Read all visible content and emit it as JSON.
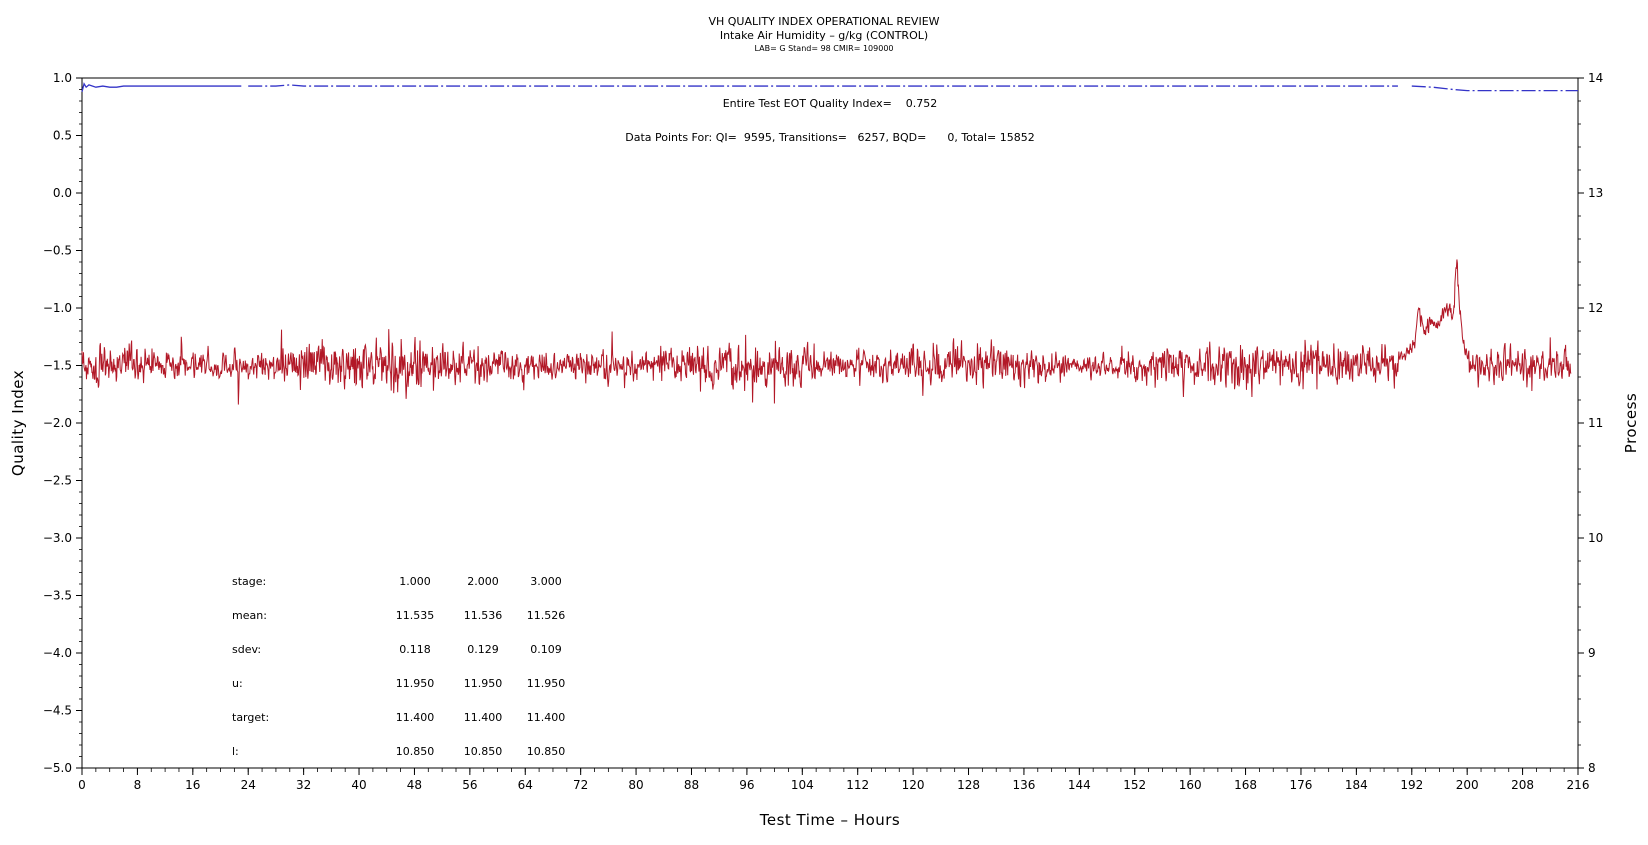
{
  "chart_data": {
    "type": "line",
    "title": "VH QUALITY INDEX OPERATIONAL REVIEW",
    "subtitle": "Intake Air Humidity – g/kg (CONTROL)",
    "subtitle2": "LAB= G Stand= 98 CMIR= 109000",
    "xlabel": "Test Time – Hours",
    "ylabel": "Quality Index",
    "y2label": "Process",
    "xlim": [
      0,
      216
    ],
    "ylim": [
      -5.0,
      1.0
    ],
    "y2lim": [
      8,
      14
    ],
    "x_ticks": [
      "0",
      "8",
      "16",
      "24",
      "32",
      "40",
      "48",
      "56",
      "64",
      "72",
      "80",
      "88",
      "96",
      "104",
      "112",
      "120",
      "128",
      "136",
      "144",
      "152",
      "160",
      "168",
      "176",
      "184",
      "192",
      "200",
      "208",
      "216"
    ],
    "y_ticks": [
      "1.0",
      "0.5",
      "0.0",
      "−0.5",
      "−1.0",
      "−1.5",
      "−2.0",
      "−2.5",
      "−3.0",
      "−3.5",
      "−4.0",
      "−4.5",
      "−5.0"
    ],
    "y2_ticks": [
      "14",
      "13",
      "12",
      "11",
      "10",
      "9",
      "8"
    ],
    "annotations": {
      "eot_quality_index": "Entire Test EOT Quality Index=    0.752",
      "data_points": "Data Points For: QI=  9595, Transitions=   6257, BQD=      0, Total= 15852"
    },
    "stats_table": {
      "rows": [
        {
          "label": "stage:",
          "values": [
            "1.000",
            "2.000",
            "3.000"
          ]
        },
        {
          "label": "mean:",
          "values": [
            "11.535",
            "11.536",
            "11.526"
          ]
        },
        {
          "label": "sdev:",
          "values": [
            "0.118",
            "0.129",
            "0.109"
          ]
        },
        {
          "label": "u:",
          "values": [
            "11.950",
            "11.950",
            "11.950"
          ]
        },
        {
          "label": "target:",
          "values": [
            "11.400",
            "11.400",
            "11.400"
          ]
        },
        {
          "label": "l:",
          "values": [
            "10.850",
            "10.850",
            "10.850"
          ]
        }
      ]
    },
    "series": [
      {
        "axis": "left",
        "color": "#3434c8",
        "style": "dash-dot",
        "segments": [
          {
            "x": [
              0.0,
              0.3,
              0.6,
              1.0,
              2.0,
              3.0,
              4.0,
              5.0,
              6.0,
              23.0
            ],
            "y": [
              0.88,
              0.95,
              0.92,
              0.94,
              0.92,
              0.93,
              0.92,
              0.92,
              0.93,
              0.93
            ]
          },
          {
            "x": [
              24.0,
              28.0,
              30.0,
              32.0,
              36.0,
              190.0
            ],
            "y": [
              0.93,
              0.93,
              0.94,
              0.93,
              0.93,
              0.93
            ]
          },
          {
            "x": [
              192.0,
              195.0,
              198.0,
              200.0,
              205.0,
              216.0
            ],
            "y": [
              0.93,
              0.92,
              0.9,
              0.89,
              0.89,
              0.89
            ]
          }
        ]
      },
      {
        "axis": "right",
        "color": "#b21827",
        "style": "noisy",
        "mean": 11.5,
        "sdev": 0.12,
        "x_range": [
          0.0,
          215.0
        ],
        "noise_envelope": [
          {
            "x": 0,
            "sd": 0.12
          },
          {
            "x": 20,
            "sd": 0.07
          },
          {
            "x": 24,
            "sd": 0.06
          },
          {
            "x": 32,
            "sd": 0.12
          },
          {
            "x": 44,
            "sd": 0.15
          },
          {
            "x": 52,
            "sd": 0.12
          },
          {
            "x": 64,
            "sd": 0.09
          },
          {
            "x": 80,
            "sd": 0.08
          },
          {
            "x": 96,
            "sd": 0.13
          },
          {
            "x": 112,
            "sd": 0.09
          },
          {
            "x": 128,
            "sd": 0.11
          },
          {
            "x": 140,
            "sd": 0.1
          },
          {
            "x": 144,
            "sd": 0.05
          },
          {
            "x": 152,
            "sd": 0.1
          },
          {
            "x": 164,
            "sd": 0.13
          },
          {
            "x": 176,
            "sd": 0.12
          },
          {
            "x": 190,
            "sd": 0.09
          },
          {
            "x": 200,
            "sd": 0.12
          },
          {
            "x": 215,
            "sd": 0.1
          }
        ],
        "excursion": {
          "x": [
            190.0,
            191.5,
            192.5,
            193.0,
            194.0,
            195.0,
            196.0,
            197.0,
            198.0,
            198.5,
            199.0,
            199.5,
            200.5,
            201.5
          ],
          "y": [
            11.55,
            11.62,
            11.72,
            11.95,
            11.8,
            11.88,
            11.85,
            12.0,
            11.95,
            12.45,
            11.9,
            11.7,
            11.5,
            11.55
          ]
        }
      }
    ]
  }
}
